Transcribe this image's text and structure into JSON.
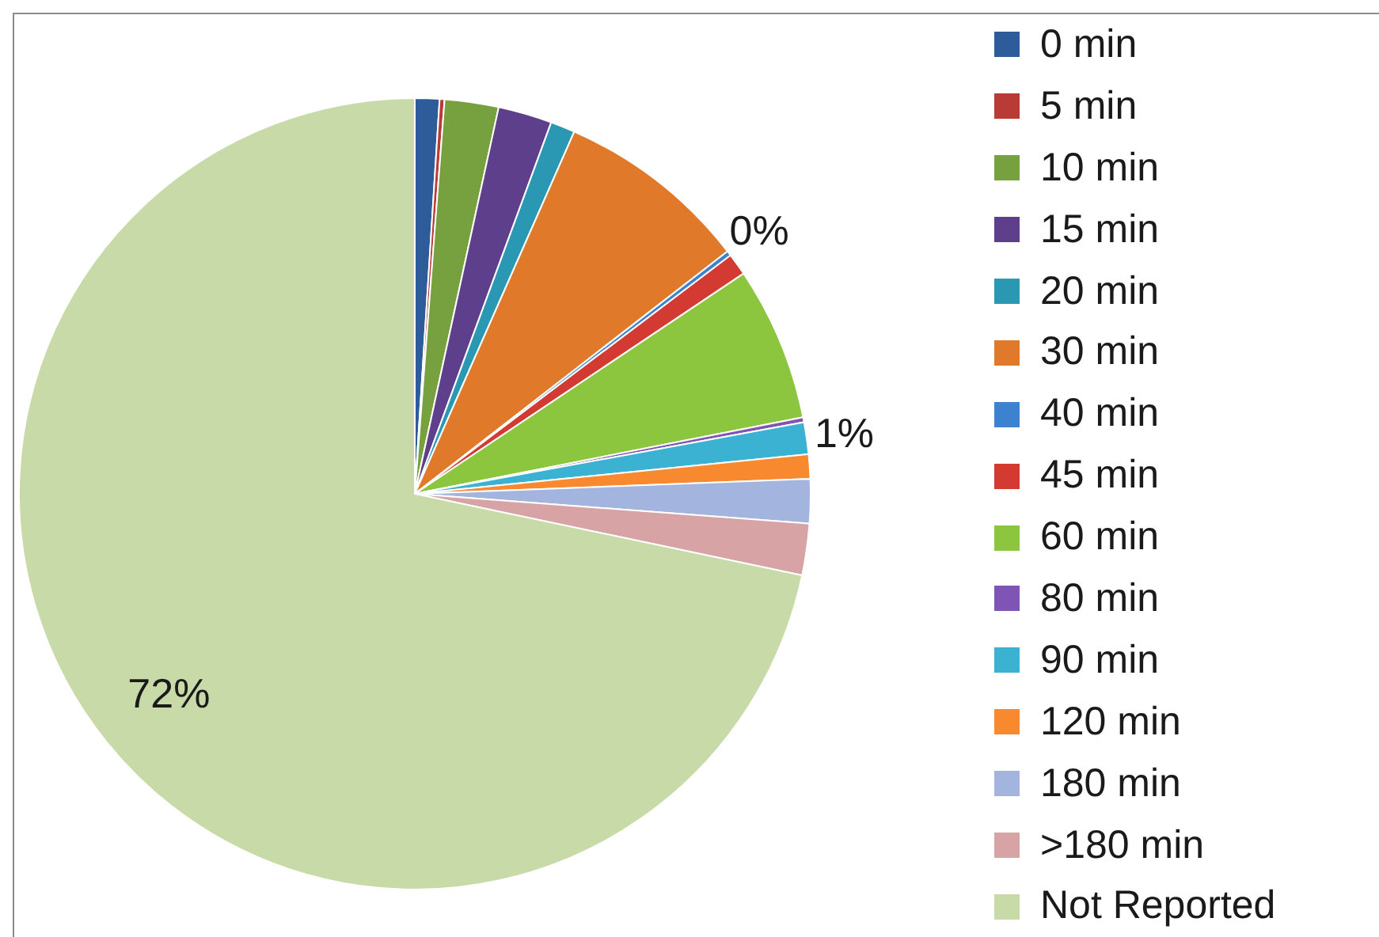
{
  "chart_data": {
    "type": "pie",
    "categories": [
      "0 min",
      "5 min",
      "10 min",
      "15 min",
      "20 min",
      "30 min",
      "40 min",
      "45 min",
      "60 min",
      "80 min",
      "90 min",
      "120 min",
      "180 min",
      ">180 min",
      "Not Reported"
    ],
    "values": [
      1.0,
      0.2,
      2.2,
      2.2,
      1.0,
      7.9,
      0.2,
      0.9,
      6.3,
      0.2,
      1.3,
      1.0,
      1.8,
      2.1,
      71.7
    ],
    "colors": [
      "#2e5c9a",
      "#b83b36",
      "#77a03e",
      "#5e3f8c",
      "#2a98b3",
      "#e07a2a",
      "#3c82d0",
      "#d23a32",
      "#8cc63e",
      "#7e55b5",
      "#3cb2d3",
      "#f8892e",
      "#a3b5df",
      "#d8a3a5",
      "#c8daa8"
    ],
    "value_labels": [
      null,
      null,
      null,
      null,
      null,
      null,
      "0%",
      null,
      null,
      null,
      "1%",
      null,
      null,
      null,
      "72%"
    ],
    "legend": "right"
  }
}
